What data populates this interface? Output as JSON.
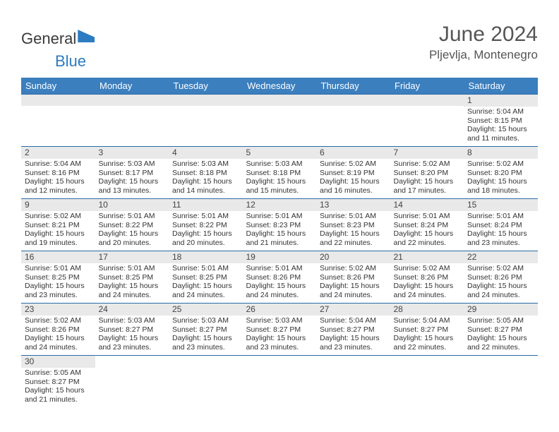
{
  "logo": {
    "word1": "General",
    "word2": "Blue"
  },
  "header": {
    "title": "June 2024",
    "location": "Pljevlja, Montenegro"
  },
  "colors": {
    "header_bg": "#3b7fbf",
    "header_text": "#ffffff",
    "daynum_bg": "#e9e9e9",
    "rule": "#2b6aa8",
    "body_text": "#333333",
    "title_text": "#555555",
    "logo_blue": "#2b7cc0"
  },
  "weekdays": [
    "Sunday",
    "Monday",
    "Tuesday",
    "Wednesday",
    "Thursday",
    "Friday",
    "Saturday"
  ],
  "grid": [
    [
      null,
      null,
      null,
      null,
      null,
      null,
      {
        "n": "1",
        "sr": "5:04 AM",
        "ss": "8:15 PM",
        "dl": "15 hours and 11 minutes."
      }
    ],
    [
      {
        "n": "2",
        "sr": "5:04 AM",
        "ss": "8:16 PM",
        "dl": "15 hours and 12 minutes."
      },
      {
        "n": "3",
        "sr": "5:03 AM",
        "ss": "8:17 PM",
        "dl": "15 hours and 13 minutes."
      },
      {
        "n": "4",
        "sr": "5:03 AM",
        "ss": "8:18 PM",
        "dl": "15 hours and 14 minutes."
      },
      {
        "n": "5",
        "sr": "5:03 AM",
        "ss": "8:18 PM",
        "dl": "15 hours and 15 minutes."
      },
      {
        "n": "6",
        "sr": "5:02 AM",
        "ss": "8:19 PM",
        "dl": "15 hours and 16 minutes."
      },
      {
        "n": "7",
        "sr": "5:02 AM",
        "ss": "8:20 PM",
        "dl": "15 hours and 17 minutes."
      },
      {
        "n": "8",
        "sr": "5:02 AM",
        "ss": "8:20 PM",
        "dl": "15 hours and 18 minutes."
      }
    ],
    [
      {
        "n": "9",
        "sr": "5:02 AM",
        "ss": "8:21 PM",
        "dl": "15 hours and 19 minutes."
      },
      {
        "n": "10",
        "sr": "5:01 AM",
        "ss": "8:22 PM",
        "dl": "15 hours and 20 minutes."
      },
      {
        "n": "11",
        "sr": "5:01 AM",
        "ss": "8:22 PM",
        "dl": "15 hours and 20 minutes."
      },
      {
        "n": "12",
        "sr": "5:01 AM",
        "ss": "8:23 PM",
        "dl": "15 hours and 21 minutes."
      },
      {
        "n": "13",
        "sr": "5:01 AM",
        "ss": "8:23 PM",
        "dl": "15 hours and 22 minutes."
      },
      {
        "n": "14",
        "sr": "5:01 AM",
        "ss": "8:24 PM",
        "dl": "15 hours and 22 minutes."
      },
      {
        "n": "15",
        "sr": "5:01 AM",
        "ss": "8:24 PM",
        "dl": "15 hours and 23 minutes."
      }
    ],
    [
      {
        "n": "16",
        "sr": "5:01 AM",
        "ss": "8:25 PM",
        "dl": "15 hours and 23 minutes."
      },
      {
        "n": "17",
        "sr": "5:01 AM",
        "ss": "8:25 PM",
        "dl": "15 hours and 24 minutes."
      },
      {
        "n": "18",
        "sr": "5:01 AM",
        "ss": "8:25 PM",
        "dl": "15 hours and 24 minutes."
      },
      {
        "n": "19",
        "sr": "5:01 AM",
        "ss": "8:26 PM",
        "dl": "15 hours and 24 minutes."
      },
      {
        "n": "20",
        "sr": "5:02 AM",
        "ss": "8:26 PM",
        "dl": "15 hours and 24 minutes."
      },
      {
        "n": "21",
        "sr": "5:02 AM",
        "ss": "8:26 PM",
        "dl": "15 hours and 24 minutes."
      },
      {
        "n": "22",
        "sr": "5:02 AM",
        "ss": "8:26 PM",
        "dl": "15 hours and 24 minutes."
      }
    ],
    [
      {
        "n": "23",
        "sr": "5:02 AM",
        "ss": "8:26 PM",
        "dl": "15 hours and 24 minutes."
      },
      {
        "n": "24",
        "sr": "5:03 AM",
        "ss": "8:27 PM",
        "dl": "15 hours and 23 minutes."
      },
      {
        "n": "25",
        "sr": "5:03 AM",
        "ss": "8:27 PM",
        "dl": "15 hours and 23 minutes."
      },
      {
        "n": "26",
        "sr": "5:03 AM",
        "ss": "8:27 PM",
        "dl": "15 hours and 23 minutes."
      },
      {
        "n": "27",
        "sr": "5:04 AM",
        "ss": "8:27 PM",
        "dl": "15 hours and 23 minutes."
      },
      {
        "n": "28",
        "sr": "5:04 AM",
        "ss": "8:27 PM",
        "dl": "15 hours and 22 minutes."
      },
      {
        "n": "29",
        "sr": "5:05 AM",
        "ss": "8:27 PM",
        "dl": "15 hours and 22 minutes."
      }
    ],
    [
      {
        "n": "30",
        "sr": "5:05 AM",
        "ss": "8:27 PM",
        "dl": "15 hours and 21 minutes."
      },
      null,
      null,
      null,
      null,
      null,
      null
    ]
  ],
  "labels": {
    "sunrise": "Sunrise:",
    "sunset": "Sunset:",
    "daylight": "Daylight:"
  }
}
